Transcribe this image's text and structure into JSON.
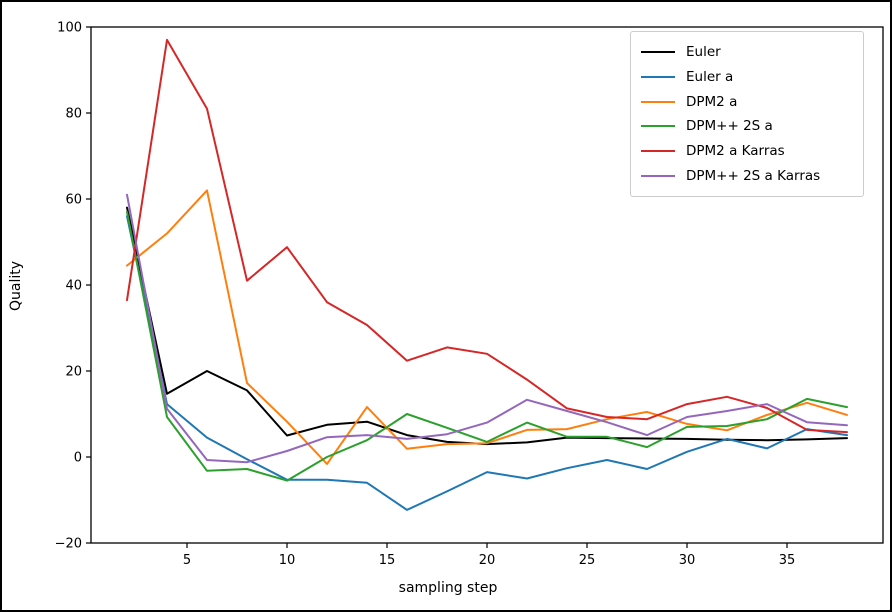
{
  "figure": {
    "xlabel": "sampling step",
    "ylabel": "Quality"
  },
  "chart_data": {
    "type": "line",
    "title": "",
    "xlabel": "sampling step",
    "ylabel": "Quality",
    "xlim": [
      0.2,
      39.8
    ],
    "ylim": [
      -20,
      100
    ],
    "xticks": [
      5,
      10,
      15,
      20,
      25,
      30,
      35
    ],
    "yticks": [
      -20,
      0,
      20,
      40,
      60,
      80,
      100
    ],
    "grid": false,
    "legend_position": "upper right",
    "x": [
      2,
      4,
      6,
      8,
      10,
      12,
      14,
      16,
      18,
      20,
      22,
      24,
      26,
      28,
      30,
      32,
      34,
      36,
      38
    ],
    "series": [
      {
        "name": "Euler",
        "color": "#000000",
        "values": [
          58,
          14.7,
          20,
          15.5,
          5,
          7.5,
          8.2,
          5.1,
          3.5,
          3,
          3.4,
          4.5,
          4.4,
          4.3,
          4.2,
          4.0,
          3.9,
          4.1,
          4.4
        ]
      },
      {
        "name": "Euler a",
        "color": "#1f77b4",
        "values": [
          56,
          12.3,
          4.5,
          -0.5,
          -5.3,
          -5.3,
          -6,
          -12.3,
          -8,
          -3.5,
          -5,
          -2.6,
          -0.7,
          -2.8,
          1.2,
          4.2,
          2,
          6.5,
          5.1
        ]
      },
      {
        "name": "DPM2 a",
        "color": "#ff7f0e",
        "values": [
          44.5,
          52,
          62,
          17.2,
          8.2,
          -1.6,
          11.6,
          1.9,
          3,
          3.2,
          6.3,
          6.5,
          8.8,
          10.5,
          7.7,
          6.2,
          9.8,
          12.6,
          9.8
        ]
      },
      {
        "name": "DPM++ 2S a",
        "color": "#2ca02c",
        "values": [
          57,
          9.3,
          -3.2,
          -2.8,
          -5.5,
          0,
          3.9,
          10,
          6.8,
          3.5,
          8,
          4.7,
          4.7,
          2.3,
          7,
          7.2,
          8.8,
          13.5,
          11.6
        ]
      },
      {
        "name": "DPM2 a Karras",
        "color": "#d62728",
        "values": [
          36.5,
          97,
          81,
          41,
          48.8,
          36,
          30.7,
          22.4,
          25.5,
          24,
          18,
          11.3,
          9.3,
          8.8,
          12.3,
          14,
          11.4,
          6.3,
          5.8
        ]
      },
      {
        "name": "DPM++ 2S a Karras",
        "color": "#9467bd",
        "values": [
          61,
          11.2,
          -0.7,
          -1.2,
          1.4,
          4.6,
          5.1,
          4.2,
          5.3,
          8,
          13.3,
          10.7,
          8.1,
          5.1,
          9.3,
          10.7,
          12.3,
          8.1,
          7.4
        ]
      }
    ]
  }
}
